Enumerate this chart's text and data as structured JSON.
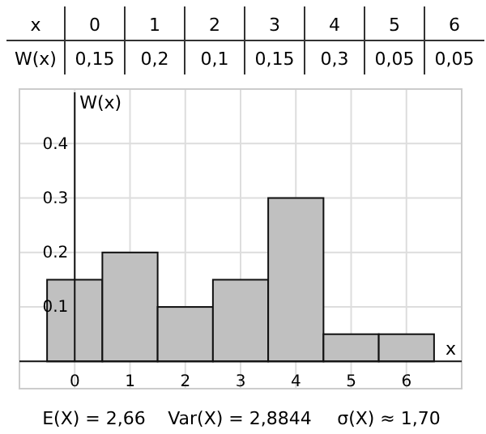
{
  "chart_data": {
    "type": "histogram",
    "xlabel": "x",
    "ylabel": "W(x)",
    "bins": [
      -0.5,
      0.5,
      1.5,
      2.5,
      3.5,
      4.5,
      5.5,
      6.5
    ],
    "values": [
      0.15,
      0.2,
      0.1,
      0.15,
      0.3,
      0.05,
      0.05
    ],
    "color": "#c0c0c0",
    "xlim": [
      -1,
      7
    ],
    "xticks": [
      0,
      1,
      2,
      3,
      4,
      5,
      6
    ],
    "ylim": [
      -0.05,
      0.5
    ],
    "yticks": [
      0.1,
      0.2,
      0.3,
      0.4
    ],
    "grid": true,
    "annotations": [
      "x",
      "0",
      "1",
      "2",
      "3",
      "4",
      "5",
      "6",
      "W(x)",
      "0,15",
      "0,2",
      "0,1",
      "0,15",
      "0,3",
      "0,05",
      "0,05",
      "E(X) = 2,66",
      "Var(X) = 2,8844",
      "σ(X) ≈ 1,70"
    ]
  }
}
